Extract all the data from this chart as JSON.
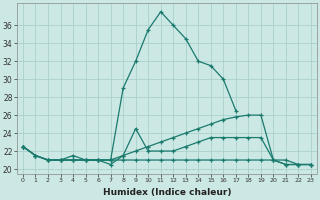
{
  "xlabel": "Humidex (Indice chaleur)",
  "x": [
    0,
    1,
    2,
    3,
    4,
    5,
    6,
    7,
    8,
    9,
    10,
    11,
    12,
    13,
    14,
    15,
    16,
    17,
    18,
    19,
    20,
    21,
    22,
    23
  ],
  "series1": [
    22.5,
    21.5,
    21.0,
    21.0,
    21.0,
    21.0,
    21.0,
    21.0,
    29.0,
    32.0,
    35.5,
    37.5,
    36.0,
    34.5,
    32.0,
    31.5,
    30.0,
    26.5,
    null,
    null,
    null,
    null,
    null,
    null
  ],
  "series2": [
    22.5,
    21.5,
    21.0,
    21.0,
    21.0,
    21.0,
    21.0,
    21.0,
    21.5,
    22.0,
    22.5,
    23.0,
    23.5,
    24.0,
    24.5,
    25.0,
    25.5,
    25.8,
    26.0,
    26.0,
    21.0,
    20.5,
    20.5,
    20.5
  ],
  "series3": [
    22.5,
    21.5,
    21.0,
    21.0,
    21.5,
    21.0,
    21.0,
    20.5,
    21.5,
    24.5,
    22.0,
    22.0,
    22.0,
    22.5,
    23.0,
    23.5,
    23.5,
    23.5,
    23.5,
    23.5,
    21.0,
    20.5,
    20.5,
    20.5
  ],
  "series4": [
    22.5,
    21.5,
    21.0,
    21.0,
    21.0,
    21.0,
    21.0,
    21.0,
    21.0,
    21.0,
    21.0,
    21.0,
    21.0,
    21.0,
    21.0,
    21.0,
    21.0,
    21.0,
    21.0,
    21.0,
    21.0,
    21.0,
    20.5,
    20.5
  ],
  "line_color": "#1a7a6e",
  "bg_color": "#cce8e4",
  "grid_color": "#aacfcb",
  "ylim": [
    19.5,
    38.5
  ],
  "yticks": [
    20,
    22,
    24,
    26,
    28,
    30,
    32,
    34,
    36
  ],
  "xlim": [
    -0.5,
    23.5
  ]
}
